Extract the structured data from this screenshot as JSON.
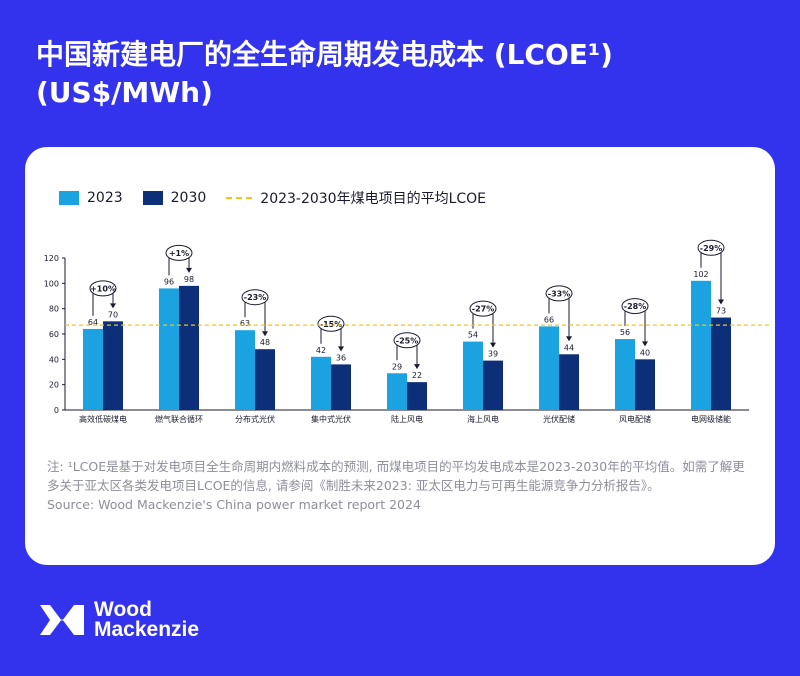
{
  "title": "中国新建电厂的全生命周期发电成本 (LCOE¹) (US$/MWh)",
  "legend": {
    "s2023": "2023",
    "s2030": "2030",
    "avg": "2023-2030年煤电项目的平均LCOE"
  },
  "colors": {
    "background": "#3333ee",
    "bar2023": "#1aa3e0",
    "bar2030": "#0d2f7a",
    "avg_line": "#f0c419"
  },
  "chart_data": {
    "type": "bar",
    "categories": [
      "高效低碳煤电",
      "燃气联合循环",
      "分布式光伏",
      "集中式光伏",
      "陆上风电",
      "海上风电",
      "光伏配储",
      "风电配储",
      "电网级储能"
    ],
    "series": [
      {
        "name": "2023",
        "values": [
          64,
          96,
          63,
          42,
          29,
          54,
          66,
          56,
          102
        ]
      },
      {
        "name": "2030",
        "values": [
          70,
          98,
          48,
          36,
          22,
          39,
          44,
          40,
          73
        ]
      }
    ],
    "change_labels": [
      "+10%",
      "+1%",
      "-23%",
      "-15%",
      "-25%",
      "-27%",
      "-33%",
      "-28%",
      "-29%"
    ],
    "reference_line": {
      "label": "2023-2030年煤电项目的平均LCOE",
      "value": 67
    },
    "ylim": [
      0,
      120
    ],
    "yticks": [
      0,
      20,
      40,
      60,
      80,
      100,
      120
    ],
    "legend_position": "top-left",
    "grid": false
  },
  "footnote": {
    "note": "注: ¹LCOE是基于对发电项目全生命周期内燃料成本的预测, 而煤电项目的平均发电成本是2023-2030年的平均值。如需了解更多关于亚太区各类发电项目LCOE的信息, 请参阅《制胜未来2023: 亚太区电力与可再生能源竞争力分析报告》。",
    "source": "Source: Wood Mackenzie's China power market report 2024"
  },
  "logo": {
    "line1": "Wood",
    "line2": "Mackenzie"
  }
}
